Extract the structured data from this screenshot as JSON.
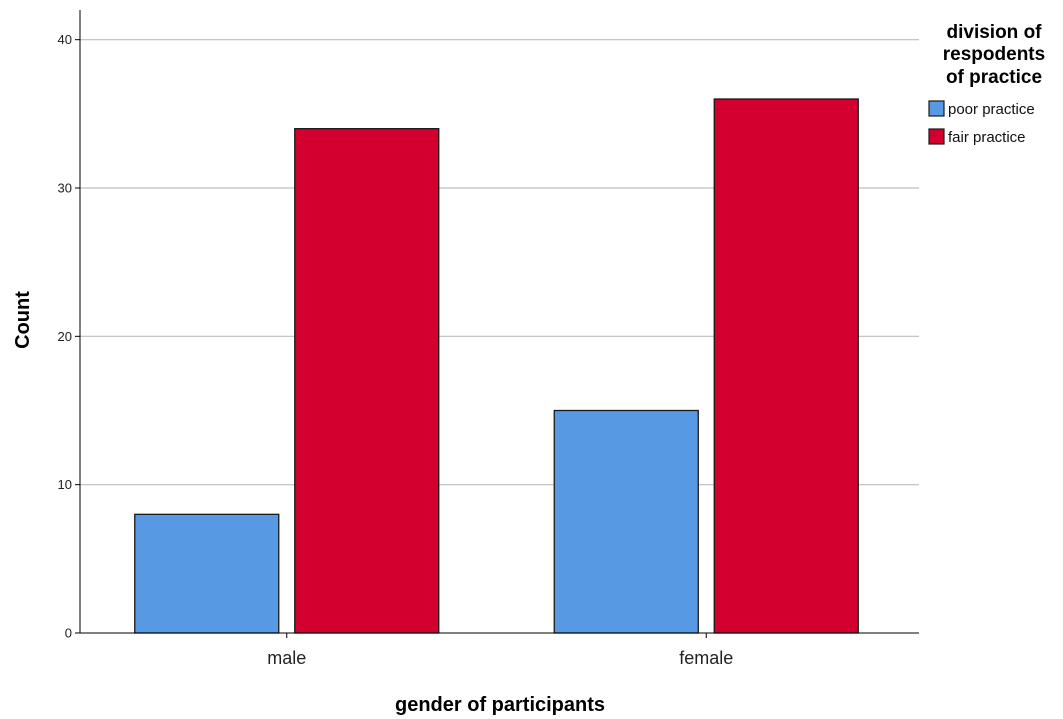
{
  "chart_data": {
    "type": "bar",
    "categories": [
      "male",
      "female"
    ],
    "series": [
      {
        "name": "poor practice",
        "values": [
          8,
          15
        ],
        "color": "#5899e3"
      },
      {
        "name": "fair practice",
        "values": [
          34,
          36
        ],
        "color": "#d3002f"
      }
    ],
    "xlabel": "gender of participants",
    "ylabel": "Count",
    "ylim": [
      0,
      42
    ],
    "yticks": [
      0,
      10,
      20,
      30,
      40
    ],
    "grid": true,
    "legend": {
      "title_lines": [
        "division of",
        "respodents",
        "of practice"
      ],
      "placement": "top-right"
    }
  }
}
